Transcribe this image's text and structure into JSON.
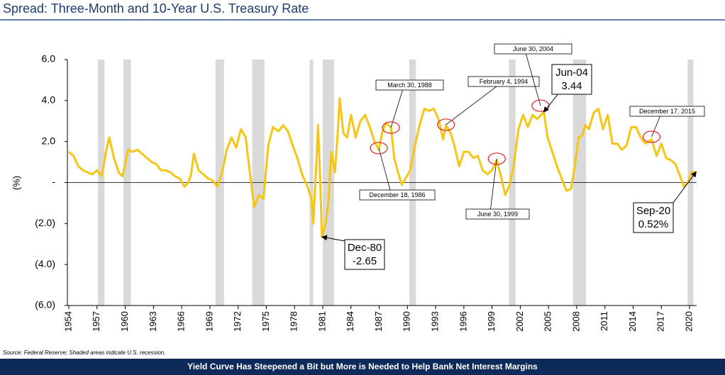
{
  "chart_data": {
    "type": "line",
    "title": "Spread: Three-Month and 10-Year U.S. Treasury Rate",
    "y_label": "(%)",
    "source": "Source: Federal Reserve; Shaded areas indicate U.S. recession.",
    "footer": "Yield Curve Has Steepened a Bit but More is Needed to Help Bank Net Interest Margins",
    "color": "#f5c518",
    "recession_color": "#d9d9d9",
    "xlim": [
      1954,
      2020.75
    ],
    "xticks": [
      1954,
      1957,
      1960,
      1963,
      1966,
      1969,
      1972,
      1975,
      1978,
      1981,
      1984,
      1987,
      1990,
      1993,
      1996,
      1999,
      2002,
      2005,
      2008,
      2011,
      2014,
      2017,
      2020
    ],
    "ylim": [
      -6,
      6
    ],
    "yticks": [
      {
        "value": 6,
        "label": "6.0"
      },
      {
        "value": 4,
        "label": "4.0"
      },
      {
        "value": 2,
        "label": "2.0"
      },
      {
        "value": 0,
        "label": "-"
      },
      {
        "value": -2,
        "label": "(2.0)"
      },
      {
        "value": -4,
        "label": "(4.0)"
      },
      {
        "value": -6,
        "label": "(6.0)"
      }
    ],
    "recessions": [
      [
        1957.1,
        1957.8
      ],
      [
        1959.8,
        1960.6
      ],
      [
        1969.6,
        1970.5
      ],
      [
        1973.5,
        1974.8
      ],
      [
        1979.6,
        1980.0
      ],
      [
        1981.0,
        1982.2
      ],
      [
        1990.2,
        1990.9
      ],
      [
        2000.8,
        2001.5
      ],
      [
        2007.6,
        2009.0
      ],
      [
        2019.8,
        2020.4
      ]
    ],
    "x": [
      1954.0,
      1954.5,
      1955.0,
      1955.5,
      1956.0,
      1956.5,
      1957.0,
      1957.5,
      1958.0,
      1958.3,
      1958.8,
      1959.3,
      1959.7,
      1960.0,
      1960.3,
      1960.8,
      1961.3,
      1961.8,
      1962.3,
      1962.8,
      1963.3,
      1963.8,
      1964.3,
      1964.8,
      1965.3,
      1965.8,
      1966.3,
      1966.7,
      1967.0,
      1967.3,
      1967.8,
      1968.3,
      1968.8,
      1969.3,
      1969.8,
      1970.3,
      1970.8,
      1971.3,
      1971.8,
      1972.3,
      1972.8,
      1973.3,
      1973.7,
      1974.2,
      1974.7,
      1975.2,
      1975.7,
      1976.3,
      1976.8,
      1977.3,
      1977.8,
      1978.3,
      1978.8,
      1979.3,
      1979.8,
      1980.0,
      1980.3,
      1980.5,
      1980.7,
      1980.92,
      1981.3,
      1981.6,
      1981.9,
      1982.3,
      1982.6,
      1982.8,
      1983.2,
      1983.6,
      1984.0,
      1984.5,
      1985.0,
      1985.5,
      1986.0,
      1986.5,
      1986.96,
      1987.3,
      1987.7,
      1988.25,
      1988.6,
      1989.0,
      1989.4,
      1989.8,
      1990.3,
      1990.8,
      1991.3,
      1991.8,
      1992.3,
      1992.8,
      1993.3,
      1993.8,
      1994.1,
      1994.6,
      1995.0,
      1995.5,
      1996.0,
      1996.5,
      1997.0,
      1997.5,
      1998.0,
      1998.5,
      1999.0,
      1999.5,
      2000.0,
      2000.4,
      2000.8,
      2001.3,
      2001.8,
      2002.3,
      2002.8,
      2003.3,
      2003.8,
      2004.5,
      2004.9,
      2005.4,
      2005.9,
      2006.4,
      2006.9,
      2007.4,
      2007.8,
      2008.2,
      2008.6,
      2008.9,
      2009.3,
      2009.8,
      2010.3,
      2010.8,
      2011.3,
      2011.8,
      2012.3,
      2012.8,
      2013.3,
      2013.8,
      2014.3,
      2014.8,
      2015.3,
      2015.96,
      2016.5,
      2017.0,
      2017.5,
      2018.0,
      2018.5,
      2019.0,
      2019.4,
      2019.8,
      2020.2,
      2020.7
    ],
    "values": [
      1.5,
      1.3,
      0.8,
      0.6,
      0.5,
      0.4,
      0.6,
      0.3,
      1.6,
      2.2,
      1.2,
      0.5,
      0.3,
      0.9,
      1.6,
      1.5,
      1.6,
      1.4,
      1.2,
      1.0,
      0.9,
      0.6,
      0.6,
      0.5,
      0.3,
      0.2,
      -0.2,
      0.0,
      0.4,
      1.4,
      0.6,
      0.4,
      0.2,
      0.1,
      -0.2,
      0.5,
      1.6,
      2.2,
      1.7,
      2.6,
      2.2,
      0.3,
      -1.2,
      -0.6,
      -0.8,
      1.8,
      2.7,
      2.5,
      2.8,
      2.5,
      1.8,
      1.2,
      0.4,
      -0.1,
      -0.8,
      -2.0,
      0.8,
      2.8,
      0.5,
      -2.65,
      -2.0,
      -1.0,
      1.5,
      0.5,
      2.5,
      4.1,
      2.4,
      2.2,
      3.3,
      2.2,
      3.0,
      3.3,
      2.7,
      2.0,
      1.6,
      2.4,
      2.9,
      2.7,
      1.2,
      0.5,
      -0.1,
      0.2,
      0.6,
      1.8,
      2.8,
      3.6,
      3.5,
      3.6,
      3.1,
      2.1,
      2.8,
      2.4,
      1.8,
      0.8,
      1.5,
      1.5,
      1.2,
      1.3,
      0.6,
      0.4,
      0.6,
      1.1,
      0.2,
      -0.6,
      -0.2,
      0.8,
      2.6,
      3.3,
      2.7,
      3.3,
      3.1,
      3.44,
      2.2,
      1.5,
      0.8,
      0.2,
      -0.4,
      -0.3,
      0.8,
      2.2,
      2.3,
      2.8,
      2.6,
      3.4,
      3.6,
      2.6,
      3.3,
      1.9,
      1.9,
      1.6,
      1.8,
      2.7,
      2.7,
      2.2,
      1.9,
      2.1,
      1.3,
      1.9,
      1.2,
      1.1,
      0.9,
      0.3,
      -0.2,
      0.0,
      0.5,
      0.52
    ],
    "date_notes": [
      {
        "text": "March 30, 1988",
        "x": 1988.25,
        "y": 2.68
      },
      {
        "text": "December 18, 1986",
        "x": 1986.96,
        "y": 1.68
      },
      {
        "text": "February 4, 1994",
        "x": 1994.1,
        "y": 2.82
      },
      {
        "text": "June 30, 1999",
        "x": 1999.5,
        "y": 1.16
      },
      {
        "text": "June 30, 2004",
        "x": 2004.15,
        "y": 3.75
      },
      {
        "text": "December 17, 2015",
        "x": 2015.96,
        "y": 2.23
      }
    ],
    "callouts": [
      {
        "text": "Jun-04",
        "x": 2004.5,
        "value": 3.44
      },
      {
        "text": "Dec-80",
        "x": 1980.92,
        "value": -2.65
      },
      {
        "text": "Sep-20",
        "x": 2020.7,
        "value": 0.52,
        "value_label": "0.52%"
      }
    ]
  }
}
